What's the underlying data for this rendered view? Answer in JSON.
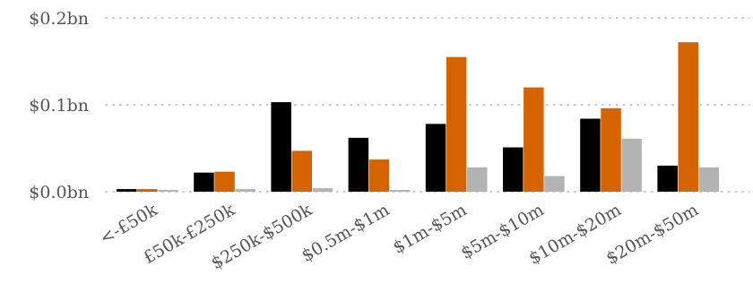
{
  "chart_data": {
    "type": "bar",
    "title": "",
    "xlabel": "",
    "ylabel": "",
    "categories": [
      "<-£50k",
      "£50k-£250k",
      "$250k-$500k",
      "$0.5m-$1m",
      "$1m-$5m",
      "$5m-$10m",
      "$10m-$20m",
      "$20m-$50m"
    ],
    "series": [
      {
        "color": "#000000",
        "values": [
          0.003,
          0.022,
          0.103,
          0.062,
          0.078,
          0.051,
          0.084,
          0.03
        ]
      },
      {
        "color": "#d46300",
        "values": [
          0.003,
          0.023,
          0.047,
          0.037,
          0.155,
          0.12,
          0.096,
          0.172
        ]
      },
      {
        "color": "#b3b3b3",
        "values": [
          0.002,
          0.003,
          0.004,
          0.002,
          0.028,
          0.018,
          0.061,
          0.028
        ]
      }
    ],
    "ylim": [
      0,
      0.2
    ],
    "yticks": [
      0,
      0.1,
      0.2
    ],
    "ytick_labels": [
      "$0.0bn",
      "$0.1bn",
      "$0.2bn"
    ],
    "grid": true,
    "legend": "none"
  }
}
